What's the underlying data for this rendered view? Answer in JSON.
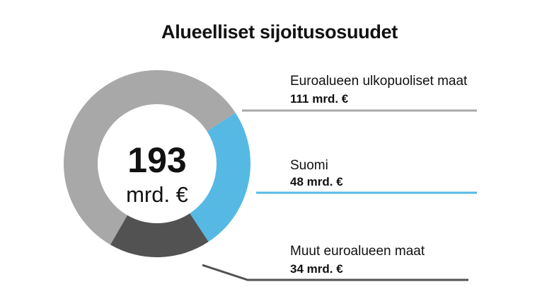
{
  "chart_data": {
    "type": "pie",
    "title": "Alueelliset sijoitusosuudet",
    "total": "193",
    "total_unit": "mrd. €",
    "categories": [
      "Euroalueen ulkopuoliset maat",
      "Suomi",
      "Muut euroalueen maat"
    ],
    "values": [
      111,
      48,
      34
    ],
    "value_labels": [
      "111 mrd. €",
      "48 mrd. €",
      "34 mrd. €"
    ],
    "colors": [
      "#a8a8a8",
      "#55b9e4",
      "#525252"
    ]
  }
}
